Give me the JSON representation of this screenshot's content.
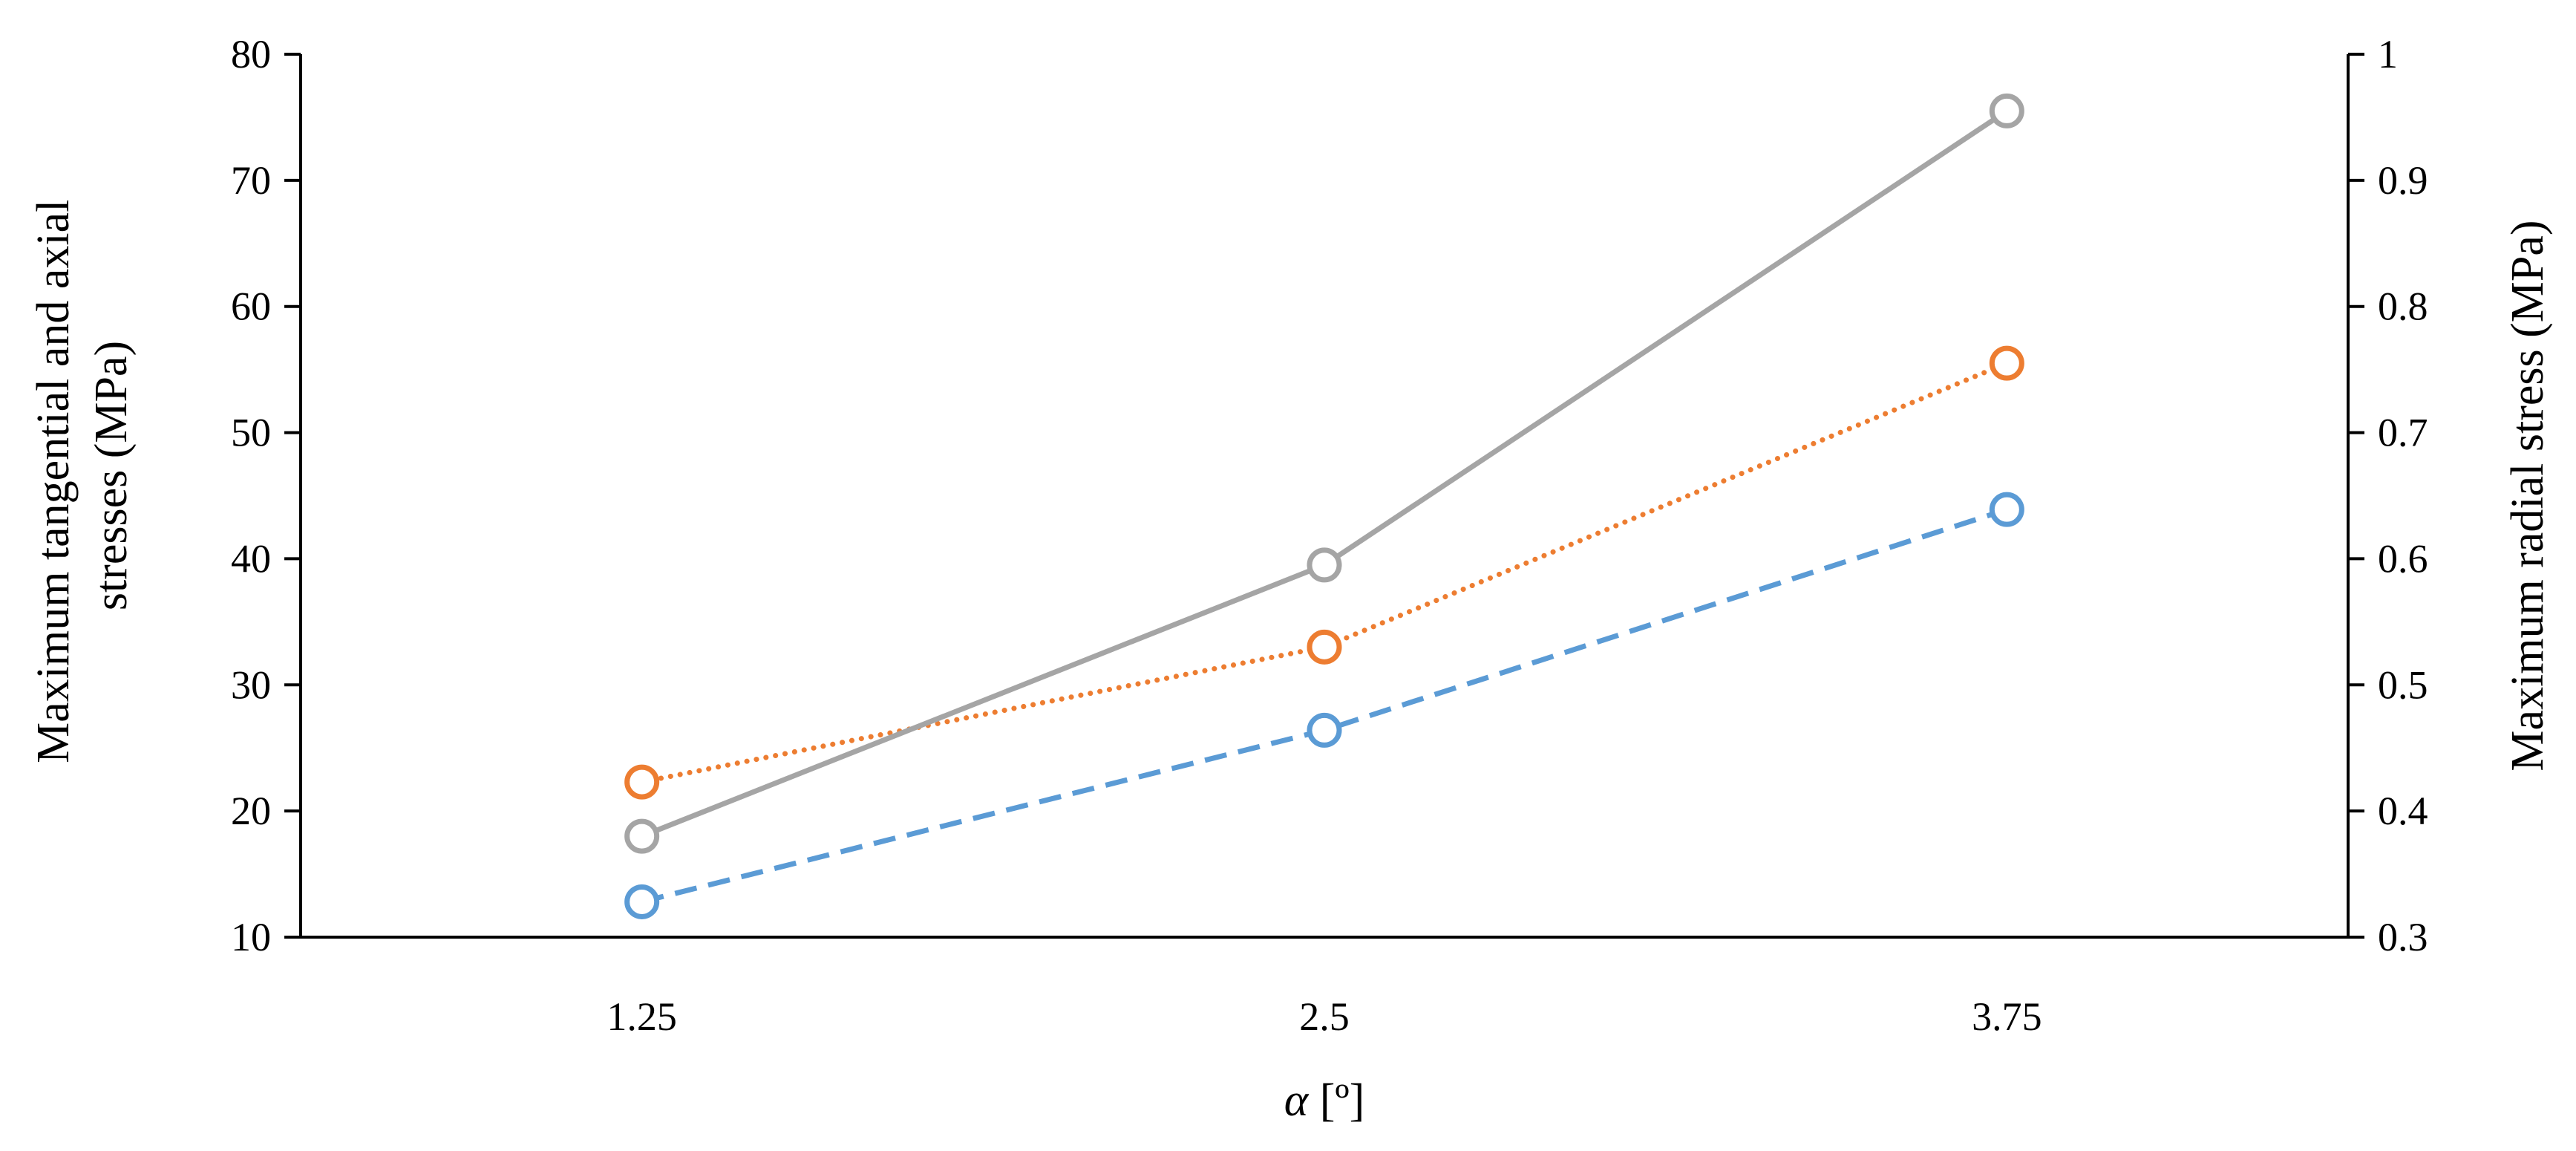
{
  "chart_data": {
    "type": "line",
    "categories": [
      "1.25",
      "2.5",
      "3.75"
    ],
    "xlabel_symbol": "α",
    "xlabel_unit": "[º]",
    "ylabel_left": [
      "Maximum tangential and axial",
      "stresses (MPa)"
    ],
    "ylabel_right": "Maximum radial stress (MPa)",
    "ylim_left": [
      10,
      80
    ],
    "ylim_right": [
      0.3,
      1
    ],
    "yticks_left": [
      "10",
      "20",
      "30",
      "40",
      "50",
      "60",
      "70",
      "80"
    ],
    "yticks_right": [
      "0.3",
      "0.4",
      "0.5",
      "0.6",
      "0.7",
      "0.8",
      "0.9",
      "1"
    ],
    "grid": false,
    "series": [
      {
        "axis": "left",
        "style": "dashed",
        "color": "#5B9BD5",
        "values": [
          12.8,
          26.4,
          43.9
        ]
      },
      {
        "axis": "left",
        "style": "dotted",
        "color": "#ED7D31",
        "values": [
          22.3,
          33.0,
          55.5
        ]
      },
      {
        "axis": "right",
        "style": "solid",
        "color": "#A5A5A5",
        "values": [
          0.38,
          0.595,
          0.955
        ]
      }
    ]
  }
}
